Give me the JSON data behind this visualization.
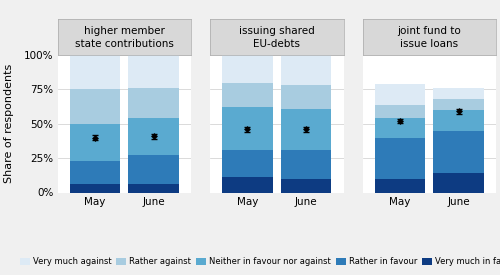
{
  "groups": [
    "higher member\nstate contributions",
    "issuing shared\nEU-debts",
    "joint fund to\nissue loans"
  ],
  "months": [
    "May",
    "June"
  ],
  "categories": [
    "Very much in favour",
    "Rather in favour",
    "Neither in favour nor against",
    "Rather against",
    "Very much against"
  ],
  "colors": [
    "#0d3b82",
    "#2e7bb8",
    "#5aaad0",
    "#a8cce0",
    "#ddeaf5"
  ],
  "data": {
    "higher member\nstate contributions": {
      "May": [
        0.06,
        0.17,
        0.27,
        0.25,
        0.25
      ],
      "June": [
        0.06,
        0.21,
        0.27,
        0.22,
        0.24
      ]
    },
    "issuing shared\nEU-debts": {
      "May": [
        0.11,
        0.2,
        0.31,
        0.18,
        0.2
      ],
      "June": [
        0.1,
        0.21,
        0.3,
        0.17,
        0.22
      ]
    },
    "joint fund to\nissue loans": {
      "May": [
        0.1,
        0.3,
        0.14,
        0.1,
        0.15
      ],
      "June": [
        0.14,
        0.31,
        0.15,
        0.08,
        0.08
      ]
    }
  },
  "mean_markers": {
    "higher member\nstate contributions": {
      "May": 0.4,
      "June": 0.41
    },
    "issuing shared\nEU-debts": {
      "May": 0.46,
      "June": 0.46
    },
    "joint fund to\nissue loans": {
      "May": 0.52,
      "June": 0.59
    }
  },
  "marker_err": 0.018,
  "ylabel": "Share of respondents",
  "yticks": [
    0.0,
    0.25,
    0.5,
    0.75,
    1.0
  ],
  "yticklabels": [
    "0%",
    "25%",
    "50%",
    "75%",
    "100%"
  ],
  "bg_color": "#f0f0f0",
  "panel_bg": "#ffffff",
  "header_bg": "#d8d8d8",
  "legend_order": [
    "Very much against",
    "Rather against",
    "Neither in favour nor against",
    "Rather in favour",
    "Very much in favour"
  ],
  "legend_colors": [
    "#ddeaf5",
    "#a8cce0",
    "#5aaad0",
    "#2e7bb8",
    "#0d3b82"
  ]
}
